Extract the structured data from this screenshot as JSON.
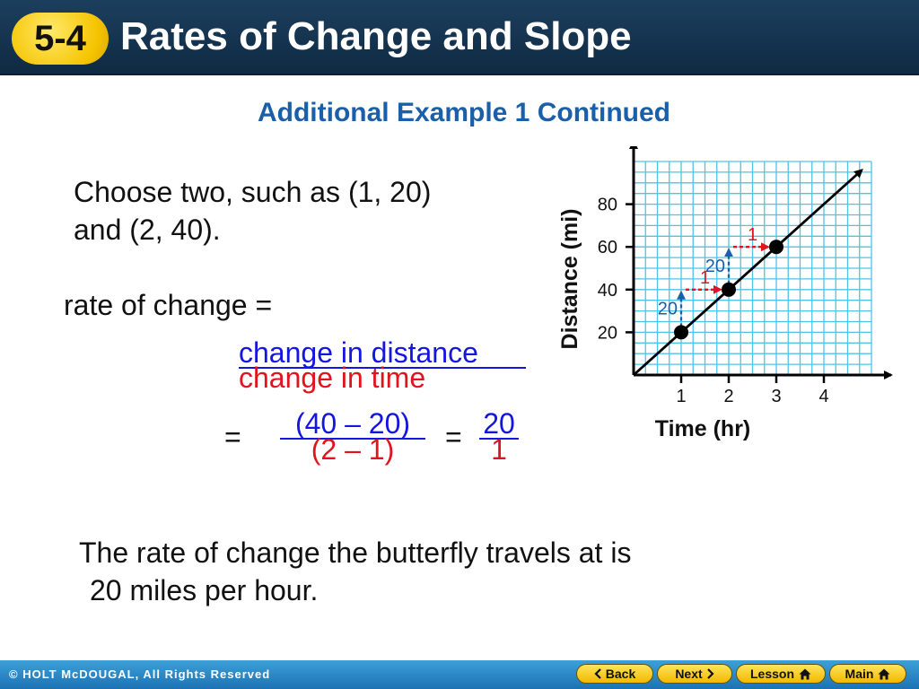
{
  "header": {
    "lesson_number": "5-4",
    "title": "Rates of Change and Slope"
  },
  "subtitle": "Additional Example 1 Continued",
  "content": {
    "choose_line1": "Choose two, such as (1, 20)",
    "choose_line2": "and (2, 40).",
    "rate_label": "rate of change =",
    "fraction_word_numerator": "change in distance",
    "fraction_word_denominator": "change in time",
    "equals_1": "=",
    "fraction_num_numerator": "(40 – 20)",
    "fraction_num_denominator": "(2 – 1)",
    "equals_2": "=",
    "result_numerator": "20",
    "result_denominator": "1",
    "conclusion_line1": "The rate of change the butterfly travels at is",
    "conclusion_line2": "20 miles per hour."
  },
  "chart_data": {
    "type": "line",
    "xlabel": "Time (hr)",
    "ylabel": "Distance (mi)",
    "x_ticks": [
      "1",
      "2",
      "3",
      "4"
    ],
    "y_ticks": [
      "20",
      "40",
      "60",
      "80"
    ],
    "xlim": [
      0,
      5
    ],
    "ylim": [
      0,
      100
    ],
    "grid": true,
    "series": [
      {
        "x": [
          0,
          1,
          2,
          3,
          4.8
        ],
        "y": [
          0,
          20,
          40,
          60,
          96
        ]
      }
    ],
    "points": [
      {
        "x": 1,
        "y": 20
      },
      {
        "x": 2,
        "y": 40
      },
      {
        "x": 3,
        "y": 60
      }
    ],
    "annotations": [
      {
        "kind": "rise",
        "x": 1,
        "y_from": 20,
        "y_to": 40,
        "label": "20"
      },
      {
        "kind": "run",
        "y": 40,
        "x_from": 1,
        "x_to": 2,
        "label": "1"
      },
      {
        "kind": "rise",
        "x": 2,
        "y_from": 40,
        "y_to": 60,
        "label": "20"
      },
      {
        "kind": "run",
        "y": 60,
        "x_from": 2,
        "x_to": 3,
        "label": "1"
      }
    ],
    "colors": {
      "grid": "#4fc3e6",
      "rise": "#1a5fa8",
      "run": "#e0141e",
      "line": "#000000"
    }
  },
  "footer": {
    "copyright": "© HOLT McDOUGAL, All Rights Reserved",
    "back_label": "Back",
    "next_label": "Next",
    "lesson_label": "Lesson",
    "main_label": "Main"
  }
}
